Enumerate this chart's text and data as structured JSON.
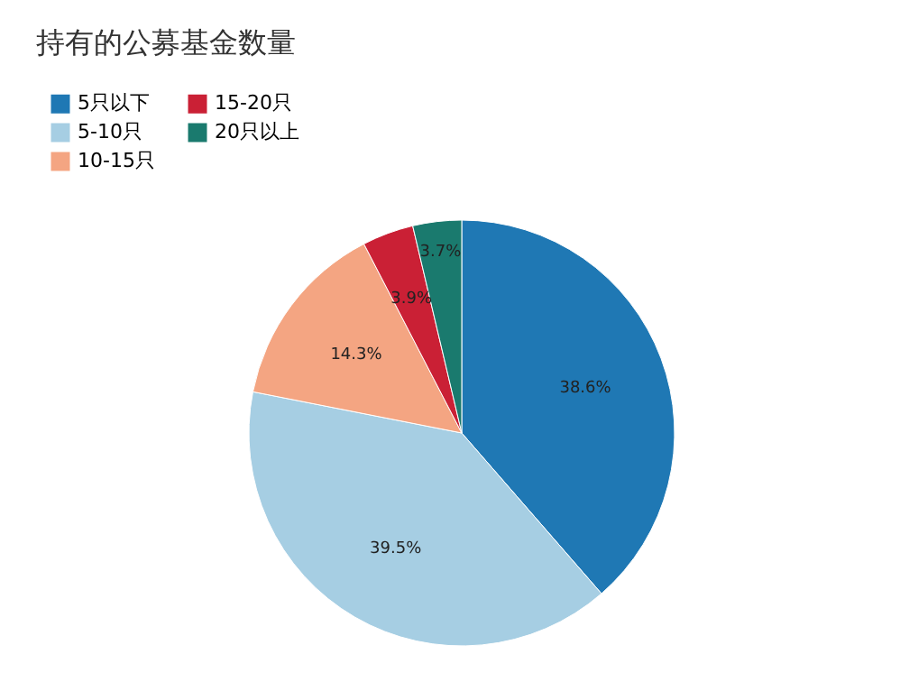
{
  "chart_data": {
    "type": "pie",
    "title": "持有的公募基金数量",
    "categories": [
      "5只以下",
      "5-10只",
      "10-15只",
      "15-20只",
      "20只以上"
    ],
    "values": [
      38.6,
      39.5,
      14.3,
      3.9,
      3.7
    ],
    "value_labels": [
      "38.6%",
      "39.5%",
      "14.3%",
      "3.9%",
      "3.7%"
    ],
    "colors": [
      "#1f78b4",
      "#a6cee3",
      "#f4a582",
      "#ca2035",
      "#1a7a6e"
    ],
    "legend": "top left"
  }
}
